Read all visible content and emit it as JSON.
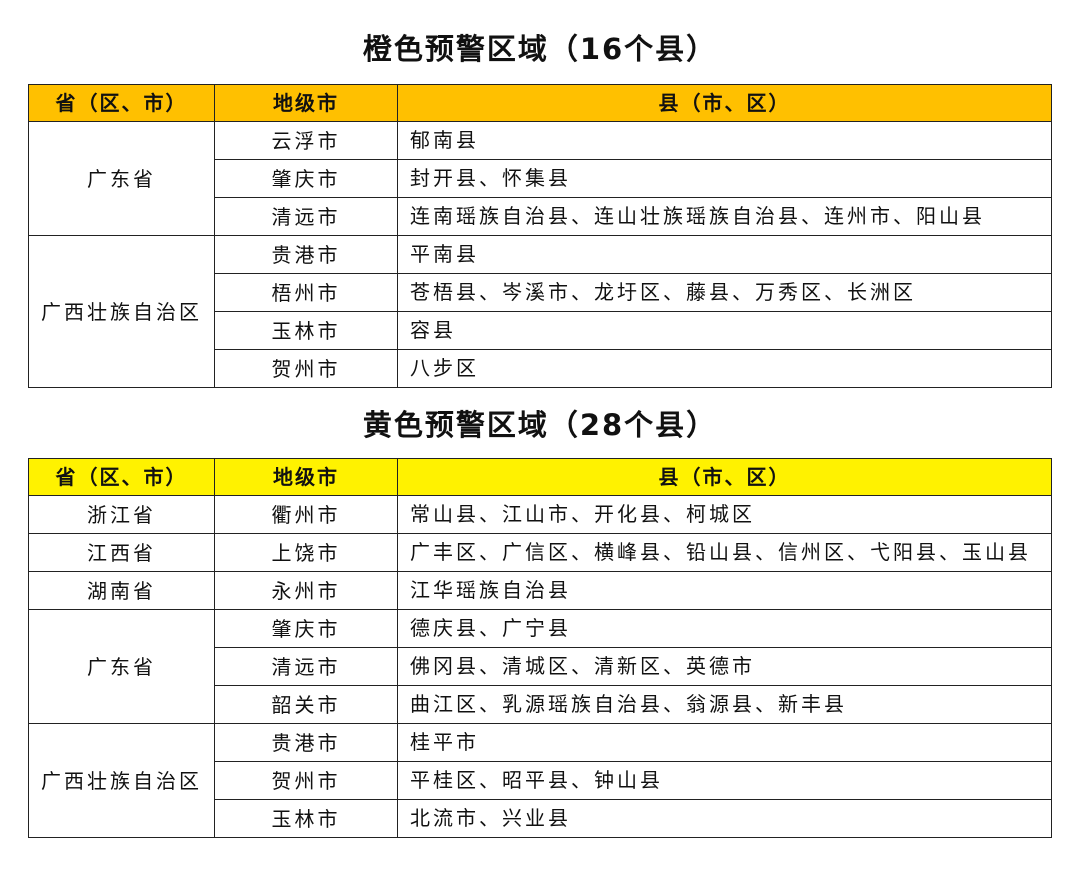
{
  "tables": [
    {
      "title": "橙色预警区域（16个县）",
      "header_color": "#FFC000",
      "headers": [
        "省（区、市）",
        "地级市",
        "县（市、区）"
      ],
      "groups": [
        {
          "province": "广东省",
          "rows": [
            {
              "city": "云浮市",
              "counties": "郁南县"
            },
            {
              "city": "肇庆市",
              "counties": "封开县、怀集县"
            },
            {
              "city": "清远市",
              "counties": "连南瑶族自治县、连山壮族瑶族自治县、连州市、阳山县"
            }
          ]
        },
        {
          "province": "广西壮族自治区",
          "rows": [
            {
              "city": "贵港市",
              "counties": "平南县"
            },
            {
              "city": "梧州市",
              "counties": "苍梧县、岑溪市、龙圩区、藤县、万秀区、长洲区"
            },
            {
              "city": "玉林市",
              "counties": "容县"
            },
            {
              "city": "贺州市",
              "counties": "八步区"
            }
          ]
        }
      ]
    },
    {
      "title": "黄色预警区域（28个县）",
      "header_color": "#FFF200",
      "headers": [
        "省（区、市）",
        "地级市",
        "县（市、区）"
      ],
      "groups": [
        {
          "province": "浙江省",
          "rows": [
            {
              "city": "衢州市",
              "counties": "常山县、江山市、开化县、柯城区"
            }
          ]
        },
        {
          "province": "江西省",
          "rows": [
            {
              "city": "上饶市",
              "counties": "广丰区、广信区、横峰县、铅山县、信州区、弋阳县、玉山县"
            }
          ]
        },
        {
          "province": "湖南省",
          "rows": [
            {
              "city": "永州市",
              "counties": "江华瑶族自治县"
            }
          ]
        },
        {
          "province": "广东省",
          "rows": [
            {
              "city": "肇庆市",
              "counties": "德庆县、广宁县"
            },
            {
              "city": "清远市",
              "counties": "佛冈县、清城区、清新区、英德市"
            },
            {
              "city": "韶关市",
              "counties": "曲江区、乳源瑶族自治县、翁源县、新丰县"
            }
          ]
        },
        {
          "province": "广西壮族自治区",
          "rows": [
            {
              "city": "贵港市",
              "counties": "桂平市"
            },
            {
              "city": "贺州市",
              "counties": "平桂区、昭平县、钟山县"
            },
            {
              "city": "玉林市",
              "counties": "北流市、兴业县"
            }
          ]
        }
      ]
    }
  ]
}
